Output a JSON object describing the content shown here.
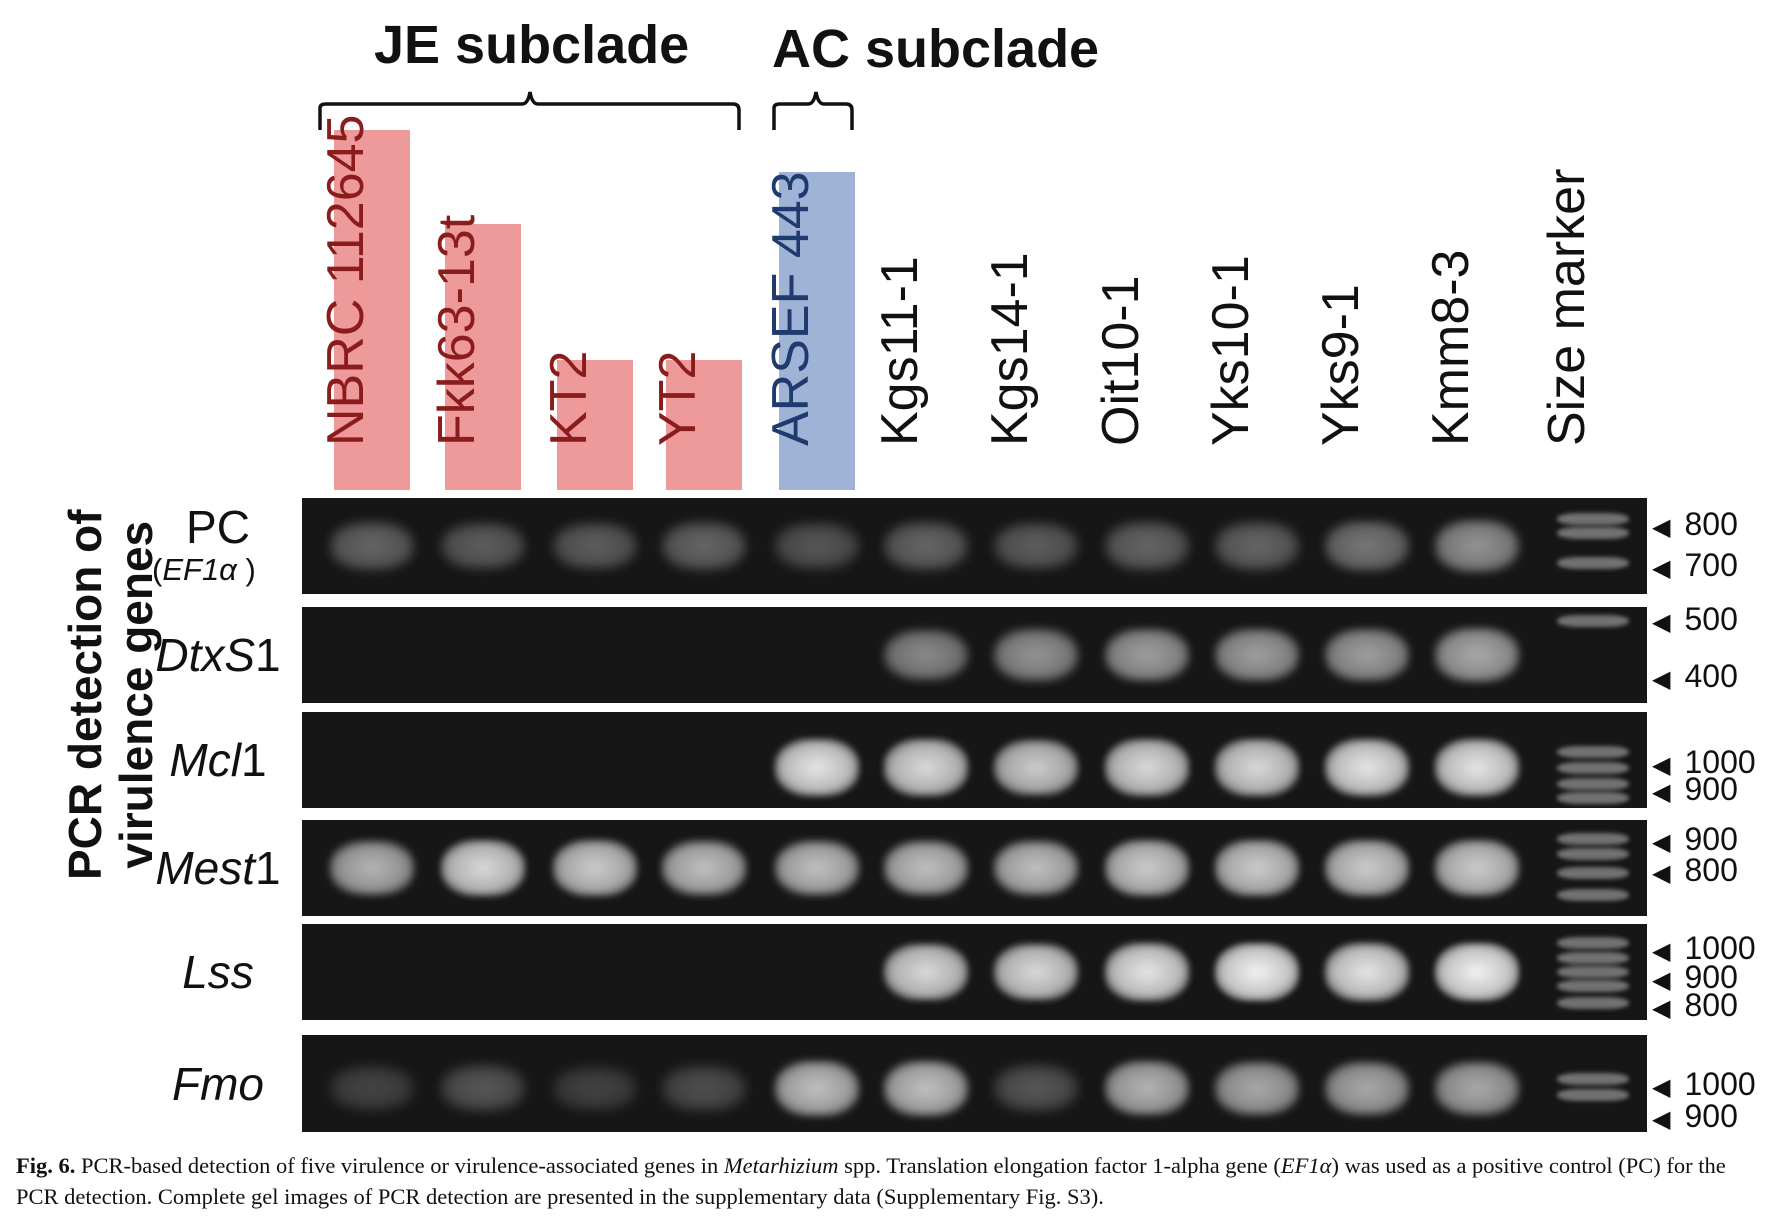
{
  "header": {
    "je_subclade_title": "JE subclade",
    "ac_subclade_title": "AC subclade"
  },
  "lanes": [
    {
      "label": "NBRC 112645",
      "group": "JE",
      "text_color": "#8b1c1c",
      "box_color": "#ef9a9a"
    },
    {
      "label": "Fkk63-13t",
      "group": "JE",
      "text_color": "#8b1c1c",
      "box_color": "#ef9a9a"
    },
    {
      "label": "KT2",
      "group": "JE",
      "text_color": "#8b1c1c",
      "box_color": "#ef9a9a"
    },
    {
      "label": "YT2",
      "group": "JE",
      "text_color": "#8b1c1c",
      "box_color": "#ef9a9a"
    },
    {
      "label": "ARSEF 443",
      "group": "AC",
      "text_color": "#1f3a6e",
      "box_color": "#9fb3d6"
    },
    {
      "label": "Kgs11-1",
      "group": "none",
      "text_color": "#111111",
      "box_color": ""
    },
    {
      "label": "Kgs14-1",
      "group": "none",
      "text_color": "#111111",
      "box_color": ""
    },
    {
      "label": "Oit10-1",
      "group": "none",
      "text_color": "#111111",
      "box_color": ""
    },
    {
      "label": "Yks10-1",
      "group": "none",
      "text_color": "#111111",
      "box_color": ""
    },
    {
      "label": "Yks9-1",
      "group": "none",
      "text_color": "#111111",
      "box_color": ""
    },
    {
      "label": "Kmm8-3",
      "group": "none",
      "text_color": "#111111",
      "box_color": ""
    },
    {
      "label": "Size marker",
      "group": "none",
      "text_color": "#111111",
      "box_color": ""
    }
  ],
  "y_axis_title": {
    "line1": "PCR detection of",
    "line2": "virulence genes"
  },
  "gels": [
    {
      "gene": "PC",
      "gene_sub": "EF1α",
      "italic": false,
      "size_ticks": [
        "800",
        "700"
      ],
      "band_intensity": [
        0.35,
        0.3,
        0.3,
        0.35,
        0.25,
        0.35,
        0.3,
        0.35,
        0.35,
        0.45,
        0.6
      ]
    },
    {
      "gene": "DtxS",
      "gene_suffix": "1",
      "italic": true,
      "size_ticks": [
        "500",
        "400"
      ],
      "band_intensity": [
        0,
        0,
        0,
        0,
        0,
        0.55,
        0.6,
        0.65,
        0.65,
        0.65,
        0.7
      ]
    },
    {
      "gene": "Mcl",
      "gene_suffix": "1",
      "italic": true,
      "size_ticks": [
        "1000",
        "900"
      ],
      "band_intensity": [
        0,
        0,
        0,
        0,
        0.95,
        0.9,
        0.85,
        0.9,
        0.9,
        0.95,
        0.95
      ]
    },
    {
      "gene": "Mest",
      "gene_suffix": "1",
      "italic": true,
      "size_ticks": [
        "900",
        "800"
      ],
      "band_intensity": [
        0.75,
        0.9,
        0.85,
        0.8,
        0.8,
        0.8,
        0.8,
        0.85,
        0.85,
        0.85,
        0.85
      ]
    },
    {
      "gene": "Lss",
      "gene_suffix": "",
      "italic": true,
      "size_ticks": [
        "1000",
        "900",
        "800"
      ],
      "band_intensity": [
        0,
        0,
        0,
        0,
        0,
        0.9,
        0.9,
        0.95,
        1.0,
        0.95,
        1.0
      ]
    },
    {
      "gene": "Fmo",
      "gene_suffix": "",
      "italic": true,
      "size_ticks": [
        "1000",
        "900"
      ],
      "band_intensity": [
        0.12,
        0.25,
        0.1,
        0.2,
        0.8,
        0.8,
        0.25,
        0.75,
        0.7,
        0.7,
        0.7
      ]
    }
  ],
  "caption": {
    "fig_label": "Fig. 6.",
    "part1": " PCR-based detection of five virulence or virulence-associated genes in ",
    "genus": "Metarhizium",
    "part2": " spp. Translation elongation factor 1-alpha gene (",
    "gene_abbrev": "EF1α",
    "part3": ") was used as a positive control (PC) for the PCR detection. Complete gel images of PCR detection are presented in the supplementary data (Supplementary Fig. S3)."
  }
}
